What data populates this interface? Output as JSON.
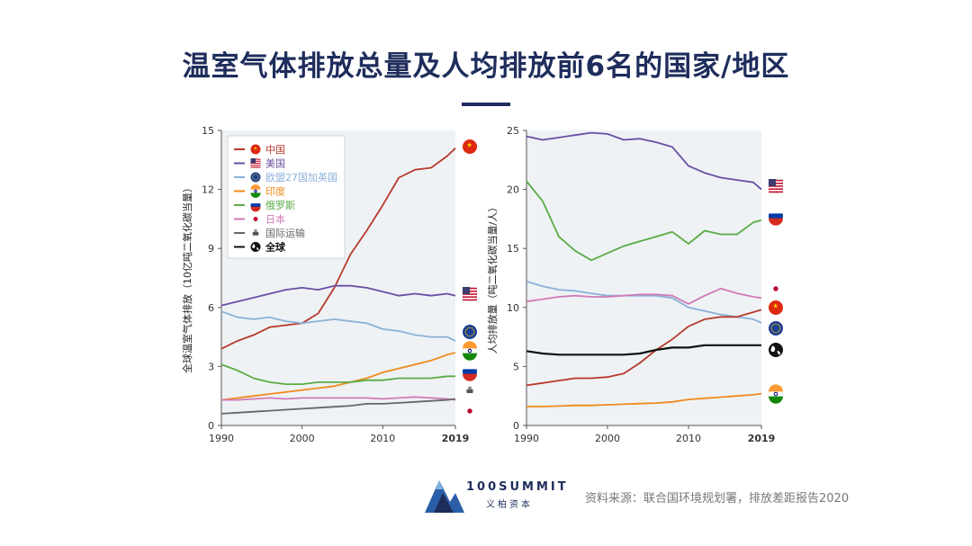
{
  "title": "温室气体排放总量及人均排放前6名的国家/地区",
  "source": "资料来源：联合国环境规划署，排放差距报告2020",
  "logo": {
    "main": "100SUMMIT",
    "sub": "义柏资本"
  },
  "colors": {
    "china": "#b83a2c",
    "usa": "#6a4fa3",
    "eu": "#8bb0d8",
    "india": "#f08a1c",
    "russia": "#5aab45",
    "japan": "#d07ab5",
    "shipping": "#666666",
    "world": "#111111",
    "plotbg": "#eef2f5"
  },
  "legend": [
    {
      "key": "china",
      "label": "中国",
      "color": "#b83a2c",
      "icon": "flag-china"
    },
    {
      "key": "usa",
      "label": "美国",
      "color": "#6a4fa3",
      "icon": "flag-usa"
    },
    {
      "key": "eu",
      "label": "欧盟27国加英国",
      "color": "#8bb0d8",
      "icon": "flag-eu"
    },
    {
      "key": "india",
      "label": "印度",
      "color": "#f08a1c",
      "icon": "flag-india"
    },
    {
      "key": "russia",
      "label": "俄罗斯",
      "color": "#5aab45",
      "icon": "flag-russia"
    },
    {
      "key": "japan",
      "label": "日本",
      "color": "#d07ab5",
      "icon": "flag-japan"
    },
    {
      "key": "shipping",
      "label": "国际运输",
      "color": "#666666",
      "icon": "ship"
    },
    {
      "key": "world",
      "label": "全球",
      "color": "#111111",
      "icon": "globe"
    }
  ],
  "chart_data": [
    {
      "type": "line",
      "title": "",
      "ylabel": "全球温室气体排放（10亿吨二氧化碳当量）",
      "xlabel": "",
      "xlim": [
        1990,
        2019
      ],
      "ylim": [
        0,
        15
      ],
      "xticks": [
        1990,
        2000,
        2010,
        2019
      ],
      "yticks": [
        0,
        3,
        6,
        9,
        12,
        15
      ],
      "x": [
        1990,
        1992,
        1994,
        1996,
        1998,
        2000,
        2002,
        2004,
        2006,
        2008,
        2010,
        2012,
        2014,
        2016,
        2018,
        2019
      ],
      "series": [
        {
          "key": "china",
          "name": "中国",
          "values": [
            3.9,
            4.3,
            4.6,
            5.0,
            5.1,
            5.2,
            5.7,
            7.0,
            8.7,
            9.9,
            11.2,
            12.6,
            13.0,
            13.1,
            13.7,
            14.1
          ]
        },
        {
          "key": "usa",
          "name": "美国",
          "values": [
            6.1,
            6.3,
            6.5,
            6.7,
            6.9,
            7.0,
            6.9,
            7.1,
            7.1,
            7.0,
            6.8,
            6.6,
            6.7,
            6.6,
            6.7,
            6.6
          ]
        },
        {
          "key": "eu",
          "name": "欧盟27国加英国",
          "values": [
            5.8,
            5.5,
            5.4,
            5.5,
            5.3,
            5.2,
            5.3,
            5.4,
            5.3,
            5.2,
            4.9,
            4.8,
            4.6,
            4.5,
            4.5,
            4.3
          ]
        },
        {
          "key": "india",
          "name": "印度",
          "values": [
            1.3,
            1.4,
            1.5,
            1.6,
            1.7,
            1.8,
            1.9,
            2.0,
            2.2,
            2.4,
            2.7,
            2.9,
            3.1,
            3.3,
            3.6,
            3.7
          ]
        },
        {
          "key": "russia",
          "name": "俄罗斯",
          "values": [
            3.1,
            2.8,
            2.4,
            2.2,
            2.1,
            2.1,
            2.2,
            2.2,
            2.2,
            2.3,
            2.3,
            2.4,
            2.4,
            2.4,
            2.5,
            2.5
          ]
        },
        {
          "key": "japan",
          "name": "日本",
          "values": [
            1.3,
            1.3,
            1.35,
            1.4,
            1.35,
            1.4,
            1.4,
            1.4,
            1.4,
            1.4,
            1.35,
            1.4,
            1.45,
            1.4,
            1.35,
            1.3
          ]
        },
        {
          "key": "shipping",
          "name": "国际运输",
          "values": [
            0.6,
            0.65,
            0.7,
            0.75,
            0.8,
            0.85,
            0.9,
            0.95,
            1.0,
            1.1,
            1.1,
            1.15,
            1.2,
            1.25,
            1.3,
            1.35
          ]
        }
      ]
    },
    {
      "type": "line",
      "title": "",
      "ylabel": "人均排放量（吨二氧化碳当量/人）",
      "xlabel": "",
      "xlim": [
        1990,
        2019
      ],
      "ylim": [
        0,
        25
      ],
      "xticks": [
        1990,
        2000,
        2010,
        2019
      ],
      "yticks": [
        0,
        5,
        10,
        15,
        20,
        25
      ],
      "x": [
        1990,
        1992,
        1994,
        1996,
        1998,
        2000,
        2002,
        2004,
        2006,
        2008,
        2010,
        2012,
        2014,
        2016,
        2018,
        2019
      ],
      "series": [
        {
          "key": "usa",
          "name": "美国",
          "values": [
            24.5,
            24.2,
            24.4,
            24.6,
            24.8,
            24.7,
            24.2,
            24.3,
            24.0,
            23.6,
            22.0,
            21.4,
            21.0,
            20.8,
            20.6,
            20.0
          ]
        },
        {
          "key": "russia",
          "name": "俄罗斯",
          "values": [
            20.7,
            19.0,
            16.0,
            14.8,
            14.0,
            14.6,
            15.2,
            15.6,
            16.0,
            16.4,
            15.4,
            16.5,
            16.2,
            16.2,
            17.2,
            17.4
          ]
        },
        {
          "key": "eu",
          "name": "欧盟27国加英国",
          "values": [
            12.2,
            11.8,
            11.5,
            11.4,
            11.2,
            11.0,
            11.0,
            11.0,
            11.0,
            10.8,
            10.0,
            9.7,
            9.4,
            9.2,
            9.0,
            8.7
          ]
        },
        {
          "key": "japan",
          "name": "日本",
          "values": [
            10.5,
            10.7,
            10.9,
            11.0,
            10.9,
            10.9,
            11.0,
            11.1,
            11.1,
            11.0,
            10.3,
            11.0,
            11.6,
            11.2,
            10.9,
            10.8
          ]
        },
        {
          "key": "china",
          "name": "中国",
          "values": [
            3.4,
            3.6,
            3.8,
            4.0,
            4.0,
            4.1,
            4.4,
            5.3,
            6.4,
            7.3,
            8.4,
            9.0,
            9.2,
            9.2,
            9.6,
            9.8
          ]
        },
        {
          "key": "world",
          "name": "全球",
          "values": [
            6.3,
            6.1,
            6.0,
            6.0,
            6.0,
            6.0,
            6.0,
            6.1,
            6.4,
            6.6,
            6.6,
            6.8,
            6.8,
            6.8,
            6.8,
            6.8
          ]
        },
        {
          "key": "india",
          "name": "印度",
          "values": [
            1.6,
            1.6,
            1.65,
            1.7,
            1.7,
            1.75,
            1.8,
            1.85,
            1.9,
            2.0,
            2.2,
            2.3,
            2.4,
            2.5,
            2.6,
            2.7
          ]
        }
      ]
    }
  ]
}
